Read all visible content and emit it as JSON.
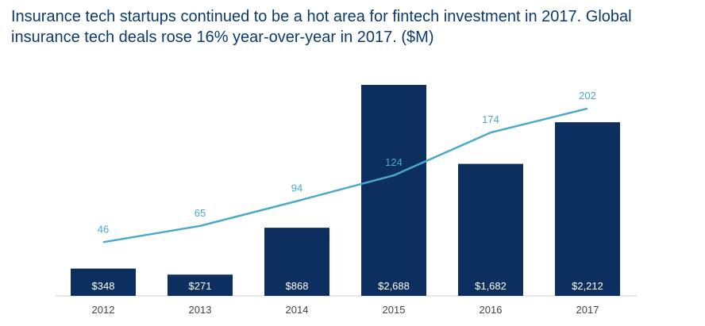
{
  "title": "Insurance tech startups continued to be a hot area for fintech investment in 2017. Global insurance tech deals rose 16% year-over-year in 2017. ($M)",
  "colors": {
    "title": "#0b3a6f",
    "bar": "#0d2f5f",
    "line": "#4aa8cc",
    "line_label": "#4aa8cc",
    "bar_label": "#ffffff",
    "axis": "#cfcfcf",
    "tick_label": "#444444"
  },
  "chart_data": {
    "type": "bar",
    "title": "Insurance tech startups continued to be a hot area for fintech investment in 2017. Global insurance tech deals rose 16% year-over-year in 2017. ($M)",
    "xlabel": "",
    "ylabel": "",
    "categories": [
      "2012",
      "2013",
      "2014",
      "2015",
      "2016",
      "2017"
    ],
    "series": [
      {
        "type": "bar",
        "unit": "$M",
        "values": [
          348,
          271,
          868,
          2688,
          1682,
          2212
        ],
        "labels": [
          "$348",
          "$271",
          "$868",
          "$2,688",
          "$1,682",
          "$2,212"
        ]
      },
      {
        "type": "line",
        "values": [
          46,
          65,
          94,
          124,
          174,
          202
        ],
        "labels": [
          "46",
          "65",
          "94",
          "124",
          "174",
          "202"
        ]
      }
    ],
    "bar_axis_range": [
      0,
      2688
    ],
    "line_axis_range": [
      0,
      240
    ],
    "grid": false,
    "legend": "none"
  }
}
